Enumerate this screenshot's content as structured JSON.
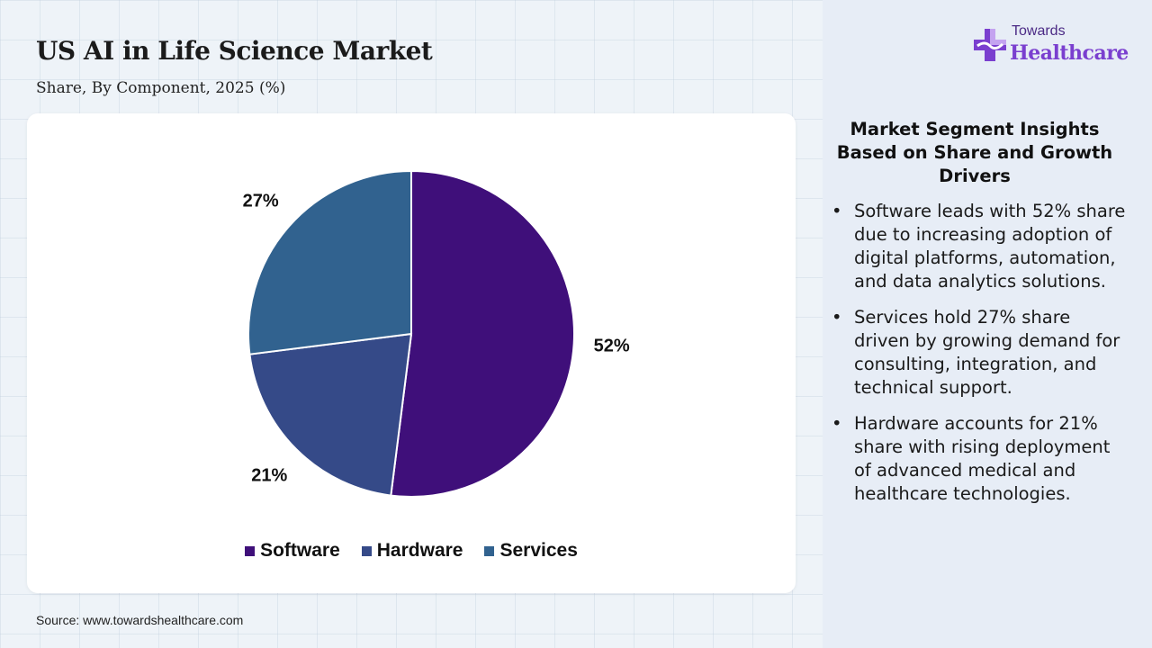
{
  "header": {
    "title": "US AI in Life Science Market",
    "subtitle": "Share, By Component, 2025 (%)"
  },
  "chart_data": {
    "type": "pie",
    "title": "US AI in Life Science Market",
    "subtitle": "Share, By Component, 2025 (%)",
    "categories": [
      "Software",
      "Hardware",
      "Services"
    ],
    "values": [
      52,
      21,
      27
    ],
    "labels": [
      "52%",
      "21%",
      "27%"
    ],
    "colors": [
      "#3f0f7a",
      "#354a88",
      "#31628f"
    ],
    "legend_position": "bottom",
    "unit": "%"
  },
  "source": "Source: www.towardshealthcare.com",
  "logo": {
    "small": "Towards",
    "big": "Healthcare"
  },
  "insights": {
    "title": "Market Segment Insights Based on Share and Growth Drivers",
    "bullet": "•",
    "items": [
      "Software leads with 52% share due to increasing adoption of digital platforms, automation, and data analytics solutions.",
      "Services hold 27% share driven by growing demand for consulting, integration, and technical support.",
      "Hardware accounts for 21% share with rising deployment of advanced medical and healthcare technologies."
    ]
  },
  "colors": {
    "background": "#eef3f8",
    "side_panel": "#e7edf6",
    "brand_purple": "#7a3fcf",
    "brand_dark": "#4b2a85"
  }
}
